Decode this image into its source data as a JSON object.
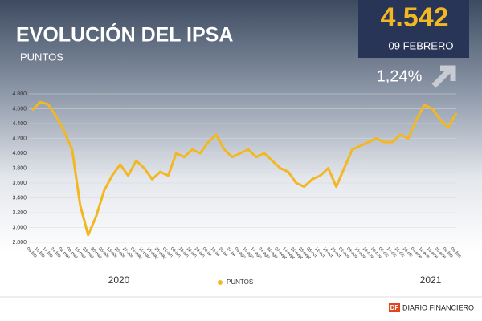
{
  "chart_data": {
    "type": "line",
    "title": "EVOLUCIÓN DEL IPSA",
    "subtitle": "PUNTOS",
    "annotations": [
      "4.542",
      "09 FEBRERO",
      "1,24%"
    ],
    "year_labels": [
      "2020",
      "2021"
    ],
    "source_logo": "DF",
    "source": "DIARIO FINANCIERO",
    "categories": [
      "03-feb",
      "10-feb",
      "17-feb",
      "24-feb",
      "02-mar",
      "09-mar",
      "16-mar",
      "23-mar",
      "30-mar",
      "06-abr",
      "13-abr",
      "20-abr",
      "27-abr",
      "04-may",
      "11-may",
      "18-may",
      "25-may",
      "01-jun",
      "08-jun",
      "15-jun",
      "22-jun",
      "29-jun",
      "06-jul",
      "13-jul",
      "20-jul",
      "27-jul",
      "03-ago",
      "10-ago",
      "17-ago",
      "24-ago",
      "31-ago",
      "07-sept",
      "14-sept",
      "21-sept",
      "28-sept",
      "05-oct",
      "12-oct",
      "19-oct",
      "26-oct",
      "02-nov",
      "09-nov",
      "16-nov",
      "23-nov",
      "30-nov",
      "07-dic",
      "14-dic",
      "21-dic",
      "28-dic",
      "04-ene",
      "11-ene",
      "18-ene",
      "25-ene",
      "01-feb",
      "09-feb"
    ],
    "series": [
      {
        "name": "PUNTOS",
        "color": "#f2b824",
        "values": [
          4580,
          4690,
          4660,
          4500,
          4300,
          4050,
          3300,
          2900,
          3150,
          3500,
          3700,
          3850,
          3700,
          3900,
          3800,
          3650,
          3750,
          3700,
          4000,
          3950,
          4050,
          4000,
          4150,
          4250,
          4050,
          3950,
          4000,
          4050,
          3950,
          4000,
          3900,
          3800,
          3750,
          3600,
          3550,
          3650,
          3700,
          3800,
          3550,
          3800,
          4050,
          4100,
          4150,
          4200,
          4150,
          4150,
          4250,
          4200,
          4450,
          4650,
          4600,
          4450,
          4350,
          4542
        ]
      }
    ],
    "ylim": [
      2800,
      4800
    ],
    "yticks": [
      {
        "value": 2800,
        "label": "2.800"
      },
      {
        "value": 3000,
        "label": "3.000"
      },
      {
        "value": 3200,
        "label": "3.200"
      },
      {
        "value": 3400,
        "label": "3.400"
      },
      {
        "value": 3600,
        "label": "3.600"
      },
      {
        "value": 3800,
        "label": "3.800"
      },
      {
        "value": 4000,
        "label": "4.000"
      },
      {
        "value": 4200,
        "label": "4.200"
      },
      {
        "value": 4400,
        "label": "4.400"
      },
      {
        "value": 4600,
        "label": "4.600"
      },
      {
        "value": 4800,
        "label": "4.800"
      }
    ],
    "grid": true
  }
}
